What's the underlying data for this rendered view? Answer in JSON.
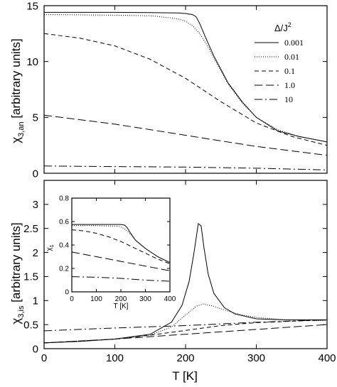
{
  "styles": {
    "0.001": "",
    "0.01": "1,2",
    "0.1": "6,4",
    "1.0": "11,5",
    "10": "11,4,2,4"
  },
  "chart_data": [
    {
      "type": "line",
      "xlabel": "",
      "ylabel": "χ3,an [arbitrary units]",
      "ylabel_main": "χ",
      "ylabel_sub": "3,an",
      "ylabel_rest": " [arbitrary units]",
      "xlim": [
        0,
        400
      ],
      "ylim": [
        0,
        15
      ],
      "xticks": [
        0,
        100,
        200,
        300,
        400
      ],
      "yticks": [
        0,
        5,
        10,
        15
      ],
      "xtick_labels_shown": false,
      "legend_title": "Δ/J²",
      "legend_title_main": "Δ/J",
      "legend_title_sup": "2",
      "legend_position": "top-right",
      "series": [
        {
          "name": "0.001",
          "x": [
            0,
            50,
            100,
            150,
            190,
            200,
            210,
            215,
            220,
            230,
            240,
            260,
            280,
            300,
            330,
            360,
            400
          ],
          "y": [
            14.4,
            14.4,
            14.4,
            14.38,
            14.35,
            14.3,
            14.2,
            14.0,
            13.4,
            11.9,
            10.5,
            8.1,
            6.4,
            5.0,
            3.8,
            3.3,
            2.8
          ]
        },
        {
          "name": "0.01",
          "x": [
            0,
            50,
            100,
            150,
            180,
            190,
            200,
            210,
            220,
            230,
            240,
            260,
            280,
            300,
            330,
            360,
            400
          ],
          "y": [
            14.2,
            14.18,
            14.15,
            14.1,
            13.9,
            13.8,
            13.6,
            13.2,
            12.5,
            11.5,
            10.3,
            8.0,
            6.3,
            5.0,
            3.9,
            3.3,
            2.8
          ]
        },
        {
          "name": "0.1",
          "x": [
            0,
            50,
            100,
            150,
            200,
            250,
            300,
            350,
            400
          ],
          "y": [
            12.5,
            12.1,
            11.4,
            10.2,
            8.5,
            6.4,
            4.5,
            3.3,
            2.5
          ]
        },
        {
          "name": "1.0",
          "x": [
            0,
            50,
            100,
            150,
            200,
            250,
            300,
            350,
            400
          ],
          "y": [
            5.2,
            4.8,
            4.4,
            3.9,
            3.4,
            2.9,
            2.4,
            2.0,
            1.6
          ]
        },
        {
          "name": "10",
          "x": [
            0,
            100,
            200,
            300,
            400
          ],
          "y": [
            0.65,
            0.6,
            0.55,
            0.45,
            0.3
          ]
        }
      ]
    },
    {
      "type": "line",
      "xlabel": "T [K]",
      "ylabel": "χ3,is [arbitrary units]",
      "ylabel_main": "χ",
      "ylabel_sub": "3,is",
      "ylabel_rest": " [arbitrary units]",
      "xlim": [
        0,
        400
      ],
      "ylim": [
        0,
        3.5
      ],
      "xticks": [
        0,
        100,
        200,
        300,
        400
      ],
      "yticks": [
        0,
        0.5,
        1,
        1.5,
        2,
        2.5,
        3
      ],
      "ytick_labels": [
        "0",
        "0.5",
        "1",
        "1.5",
        "2",
        "2.5",
        "3"
      ],
      "series": [
        {
          "name": "0.001",
          "x": [
            0,
            50,
            100,
            150,
            180,
            195,
            205,
            212,
            218,
            222,
            226,
            232,
            240,
            255,
            270,
            300,
            340,
            400
          ],
          "y": [
            0.12,
            0.15,
            0.2,
            0.3,
            0.55,
            0.9,
            1.4,
            2.0,
            2.6,
            2.55,
            2.1,
            1.55,
            1.15,
            0.85,
            0.72,
            0.62,
            0.6,
            0.6
          ]
        },
        {
          "name": "0.01",
          "x": [
            0,
            50,
            100,
            150,
            180,
            200,
            215,
            225,
            240,
            260,
            280,
            300,
            340,
            400
          ],
          "y": [
            0.12,
            0.15,
            0.2,
            0.28,
            0.45,
            0.7,
            0.88,
            0.93,
            0.88,
            0.78,
            0.7,
            0.65,
            0.6,
            0.58
          ]
        },
        {
          "name": "0.1",
          "x": [
            0,
            50,
            100,
            150,
            200,
            250,
            300,
            350,
            400
          ],
          "y": [
            0.12,
            0.16,
            0.2,
            0.28,
            0.38,
            0.48,
            0.54,
            0.57,
            0.6
          ]
        },
        {
          "name": "1.0",
          "x": [
            0,
            100,
            200,
            300,
            400
          ],
          "y": [
            0.12,
            0.2,
            0.3,
            0.4,
            0.5
          ]
        },
        {
          "name": "10",
          "x": [
            0,
            100,
            200,
            300,
            400
          ],
          "y": [
            0.37,
            0.43,
            0.48,
            0.55,
            0.6
          ]
        }
      ]
    },
    {
      "type": "line",
      "xlabel": "T [K]",
      "ylabel": "χ1",
      "ylabel_main": "χ",
      "ylabel_sub": "1",
      "xlim": [
        0,
        400
      ],
      "ylim": [
        0,
        0.8
      ],
      "xticks": [
        0,
        100,
        200,
        300,
        400
      ],
      "yticks": [
        0,
        0.2,
        0.4,
        0.6,
        0.8
      ],
      "ytick_labels": [
        "0",
        "0.2",
        "0.4",
        "0.6",
        "0.8"
      ],
      "series": [
        {
          "name": "0.001",
          "x": [
            0,
            100,
            200,
            215,
            225,
            240,
            260,
            300,
            350,
            400
          ],
          "y": [
            0.575,
            0.575,
            0.575,
            0.57,
            0.55,
            0.5,
            0.44,
            0.37,
            0.3,
            0.25
          ]
        },
        {
          "name": "0.01",
          "x": [
            0,
            100,
            190,
            205,
            220,
            240,
            260,
            300,
            350,
            400
          ],
          "y": [
            0.565,
            0.565,
            0.56,
            0.55,
            0.53,
            0.49,
            0.44,
            0.37,
            0.3,
            0.25
          ]
        },
        {
          "name": "0.1",
          "x": [
            0,
            50,
            100,
            150,
            200,
            250,
            300,
            350,
            400
          ],
          "y": [
            0.53,
            0.52,
            0.5,
            0.47,
            0.43,
            0.38,
            0.33,
            0.28,
            0.24
          ]
        },
        {
          "name": "1.0",
          "x": [
            0,
            100,
            200,
            300,
            400
          ],
          "y": [
            0.34,
            0.3,
            0.26,
            0.22,
            0.18
          ]
        },
        {
          "name": "10",
          "x": [
            0,
            100,
            200,
            300,
            400
          ],
          "y": [
            0.13,
            0.125,
            0.115,
            0.1,
            0.09
          ]
        }
      ]
    }
  ]
}
